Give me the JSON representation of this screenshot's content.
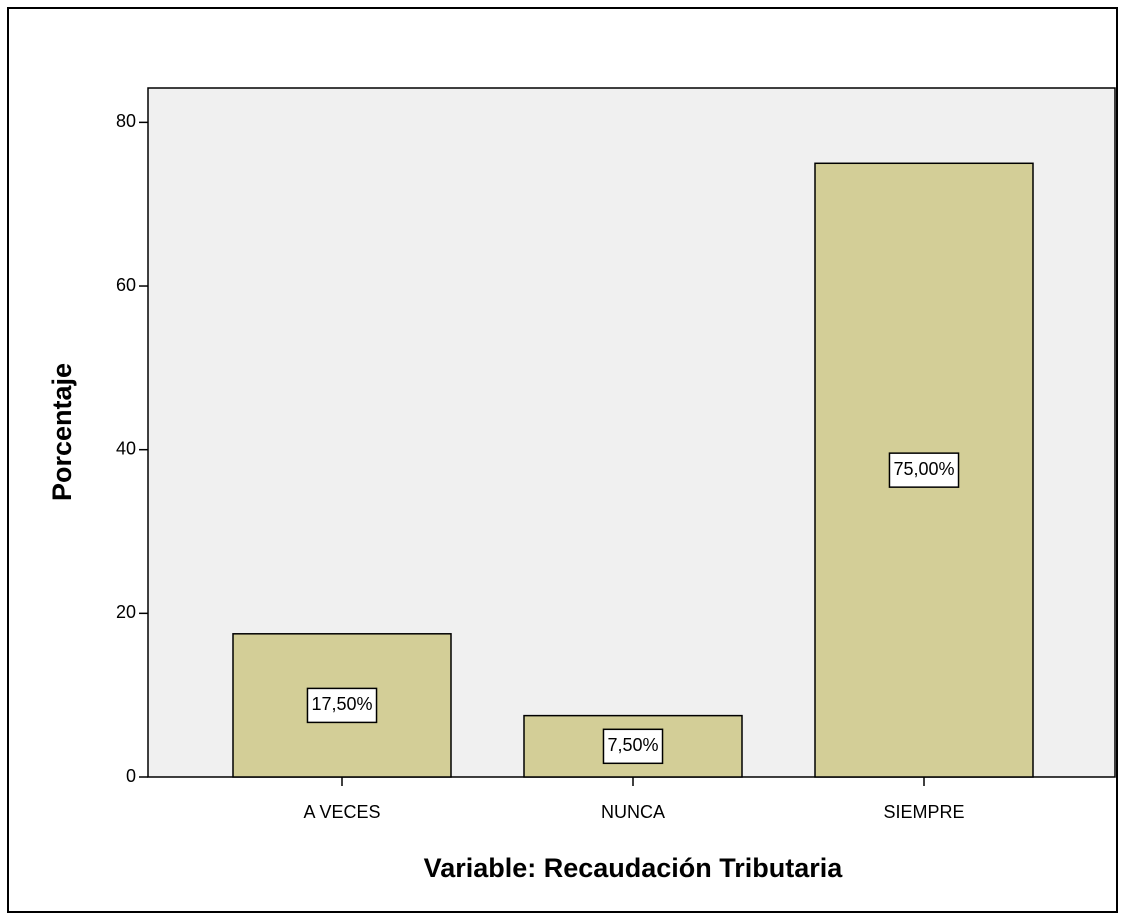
{
  "chart_data": {
    "type": "bar",
    "categories": [
      "A VECES",
      "NUNCA",
      "SIEMPRE"
    ],
    "values": [
      17.5,
      7.5,
      75
    ],
    "value_labels": [
      "17,50%",
      "7,50%",
      "75,00%"
    ],
    "color": "#d3ce97",
    "ylabel": "Porcentaje",
    "xlabel": "Variable: Recaudación Tributaria",
    "ylim": [
      0,
      84.2
    ],
    "yticks": [
      0,
      20,
      40,
      60,
      80
    ],
    "grid": false
  }
}
